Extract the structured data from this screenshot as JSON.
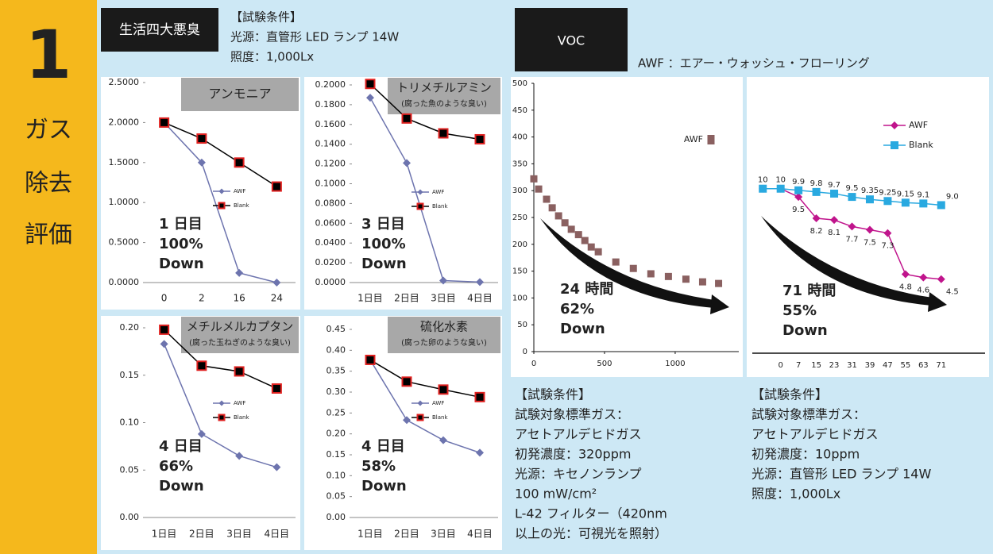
{
  "side": {
    "number": "1",
    "label": [
      "ガス",
      "除去",
      "評価"
    ]
  },
  "header_left": {
    "title": "生活四大悪臭",
    "conditions": [
      "【試験条件】",
      "光源：直管形 LED ランプ 14W",
      "照度：1,000Lx"
    ]
  },
  "header_right": {
    "title": "VOC",
    "note": "AWF ：エアー・ウォッシュ・フローリング"
  },
  "conditions_voc": [
    "【試験条件】",
    "試験対象標準ガス：",
    "アセトアルデヒドガス",
    "初発濃度：320ppm",
    "光源：キセノンランプ",
    "100 mW/cm²",
    "L-42 フィルター（420nm",
    "以上の光：可視光を照射）"
  ],
  "conditions_low": [
    "【試験条件】",
    "試験対象標準ガス：",
    "アセトアルデヒドガス",
    "初発濃度：10ppm",
    "光源：直管形 LED ランプ 14W",
    "照度：1,000Lx"
  ],
  "chart_data": [
    {
      "type": "line",
      "title": "アンモニア",
      "categories": [
        "0",
        "2",
        "16",
        "24"
      ],
      "ylim": [
        0,
        2.5
      ],
      "yticks": [
        {
          "value": 0,
          "label": "0.0000"
        },
        {
          "value": 0.5,
          "label": "0.5000"
        },
        {
          "value": 1,
          "label": "1.0000"
        },
        {
          "value": 1.5,
          "label": "1.5000"
        },
        {
          "value": 2,
          "label": "2.0000"
        },
        {
          "value": 2.5,
          "label": "2.5000"
        }
      ],
      "series": [
        {
          "name": "AWF",
          "color": "#6d74ae",
          "marker": "diamond",
          "values": [
            2.0,
            1.5,
            0.12,
            0.0
          ]
        },
        {
          "name": "Blank",
          "color": "#000000",
          "marker": "square",
          "marker_edge": "#e0201f",
          "values": [
            2.0,
            1.8,
            1.5,
            1.2
          ]
        }
      ],
      "annotation": [
        "1 日目",
        "100%",
        "Down"
      ]
    },
    {
      "type": "line",
      "title": "トリメチルアミン",
      "subtitle": "(腐った魚のような臭い)",
      "categories": [
        "1日目",
        "2日目",
        "3日目",
        "4日目"
      ],
      "ylim": [
        0,
        0.2
      ],
      "yticks": [
        {
          "value": 0,
          "label": "0.0000"
        },
        {
          "value": 0.02,
          "label": "0.0200"
        },
        {
          "value": 0.04,
          "label": "0.0400"
        },
        {
          "value": 0.06,
          "label": "0.0600"
        },
        {
          "value": 0.08,
          "label": "0.0800"
        },
        {
          "value": 0.1,
          "label": "0.1000"
        },
        {
          "value": 0.12,
          "label": "0.1200"
        },
        {
          "value": 0.14,
          "label": "0.1400"
        },
        {
          "value": 0.16,
          "label": "0.1600"
        },
        {
          "value": 0.18,
          "label": "0.1800"
        },
        {
          "value": 0.2,
          "label": "0.2000"
        }
      ],
      "series": [
        {
          "name": "AWF",
          "color": "#6d74ae",
          "marker": "diamond",
          "values": [
            0.187,
            0.121,
            0.002,
            0.0005
          ]
        },
        {
          "name": "Blank",
          "color": "#000000",
          "marker": "square",
          "marker_edge": "#e0201f",
          "values": [
            0.201,
            0.166,
            0.151,
            0.145
          ]
        }
      ],
      "annotation": [
        "3 日目",
        "100%",
        "Down"
      ]
    },
    {
      "type": "line",
      "title": "メチルメルカプタン",
      "subtitle": "(腐った玉ねぎのような臭い)",
      "categories": [
        "1日目",
        "2日目",
        "3日目",
        "4日目"
      ],
      "ylim": [
        0,
        0.2
      ],
      "yticks": [
        {
          "value": 0,
          "label": "0.00"
        },
        {
          "value": 0.05,
          "label": "0.05"
        },
        {
          "value": 0.1,
          "label": "0.10"
        },
        {
          "value": 0.15,
          "label": "0.15"
        },
        {
          "value": 0.2,
          "label": "0.20"
        }
      ],
      "series": [
        {
          "name": "AWF",
          "color": "#6d74ae",
          "marker": "diamond",
          "values": [
            0.183,
            0.088,
            0.065,
            0.053
          ]
        },
        {
          "name": "Blank",
          "color": "#000000",
          "marker": "square",
          "marker_edge": "#e0201f",
          "values": [
            0.198,
            0.16,
            0.154,
            0.136
          ]
        }
      ],
      "annotation": [
        "4 日目",
        "66%",
        "Down"
      ]
    },
    {
      "type": "line",
      "title": "硫化水素",
      "subtitle": "(腐った卵のような臭い)",
      "categories": [
        "1日目",
        "2日目",
        "3日目",
        "4日目"
      ],
      "ylim": [
        0,
        0.45
      ],
      "yticks": [
        {
          "value": 0,
          "label": "0.00"
        },
        {
          "value": 0.05,
          "label": "0.05"
        },
        {
          "value": 0.1,
          "label": "0.10"
        },
        {
          "value": 0.15,
          "label": "0.15"
        },
        {
          "value": 0.2,
          "label": "0.20"
        },
        {
          "value": 0.25,
          "label": "0.25"
        },
        {
          "value": 0.3,
          "label": "0.30"
        },
        {
          "value": 0.35,
          "label": "0.35"
        },
        {
          "value": 0.4,
          "label": "0.40"
        },
        {
          "value": 0.45,
          "label": "0.45"
        }
      ],
      "series": [
        {
          "name": "AWF",
          "color": "#6d74ae",
          "marker": "diamond",
          "values": [
            0.377,
            0.233,
            0.185,
            0.155
          ]
        },
        {
          "name": "Blank",
          "color": "#000000",
          "marker": "square",
          "marker_edge": "#e0201f",
          "values": [
            0.377,
            0.325,
            0.306,
            0.288
          ]
        }
      ],
      "annotation": [
        "4 日目",
        "58%",
        "Down"
      ]
    },
    {
      "type": "scatter",
      "xlim": [
        0,
        1450
      ],
      "xticks": [
        0,
        500,
        1000
      ],
      "ylim": [
        0,
        500
      ],
      "yticks": [
        0,
        50,
        100,
        150,
        200,
        250,
        300,
        350,
        400,
        450,
        500
      ],
      "series": [
        {
          "name": "AWF",
          "color": "#8a6060",
          "x": [
            0,
            34,
            90,
            130,
            175,
            220,
            265,
            316,
            361,
            406,
            456,
            580,
            704,
            828,
            952,
            1076,
            1194,
            1307
          ],
          "values": [
            322,
            303,
            284,
            268,
            253,
            240,
            228,
            218,
            207,
            195,
            186,
            167,
            155,
            145,
            140,
            135,
            130,
            127
          ]
        }
      ],
      "annotation": [
        "24 時間",
        "62%",
        "Down"
      ]
    },
    {
      "type": "line",
      "categories": [
        null,
        "0",
        "7",
        "15",
        "23",
        "31",
        "39",
        "47",
        "55",
        "63",
        "71"
      ],
      "ylim": [
        0,
        16.5
      ],
      "series": [
        {
          "name": "AWF",
          "color": "#c0148c",
          "marker": "diamond",
          "values": [
            10,
            10,
            9.5,
            8.2,
            8.1,
            7.7,
            7.5,
            7.3,
            4.8,
            4.6,
            4.5
          ],
          "value_labels": [
            null,
            null,
            "9.5",
            "8.2",
            "8.1",
            "7.7",
            "7.5",
            "7.3",
            "4.8",
            "4.6",
            "4.5"
          ]
        },
        {
          "name": "Blank",
          "color": "#29a9e0",
          "marker": "square",
          "values": [
            10,
            10,
            9.9,
            9.8,
            9.7,
            9.5,
            9.35,
            9.25,
            9.15,
            9.1,
            9.0
          ],
          "value_labels": [
            "10",
            "10",
            "9.9",
            "9.8",
            "9.7",
            "9.5",
            "9.35",
            "9.25",
            "9.15",
            "9.1",
            "9.0"
          ]
        }
      ],
      "annotation": [
        "71 時間",
        "55%",
        "Down"
      ]
    }
  ]
}
